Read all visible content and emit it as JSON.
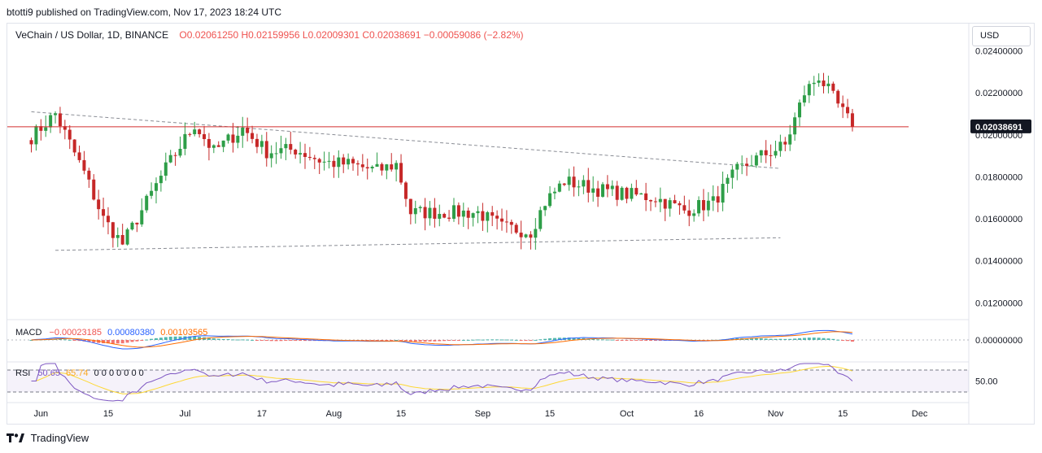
{
  "publisher": "btotti9 published on TradingView.com, Nov 17, 2023 18:24 UTC",
  "legend": {
    "symbol": "VeChain / US Dollar, 1D, BINANCE",
    "open": "O0.02061250",
    "high": "H0.02159956",
    "low": "L0.02009301",
    "close": "C0.02038691",
    "change": "−0.00059086 (−2.82%)"
  },
  "currency": "USD",
  "last_price_label": "0.02038691",
  "macd": {
    "label": "MACD",
    "hist": "−0.00023185",
    "macd": "0.00080380",
    "signal": "0.00103565",
    "axis_label": "0.00000000"
  },
  "rsi": {
    "label": "RSI",
    "value": "50.65",
    "ma": "65.74",
    "extra": "0 0 0 0 0 0 0",
    "axis_label": "50.00"
  },
  "footer": {
    "brand": "TradingView"
  },
  "colors": {
    "up": "#26a69a",
    "up_candle": "#2e9e48",
    "down": "#c62828",
    "price_line": "#d32f2f",
    "macd_line": "#2962ff",
    "signal_line": "#ff6d00",
    "rsi_line": "#7e57c2",
    "rsi_ma": "#fdd835"
  },
  "chart_data": {
    "type": "candlestick",
    "title": "VeChain / US Dollar, 1D, BINANCE",
    "y_ticks": [
      "0.02400000",
      "0.02200000",
      "0.02000000",
      "0.01800000",
      "0.01600000",
      "0.01400000",
      "0.01200000"
    ],
    "ylim": [
      0.0112,
      0.0253
    ],
    "x_ticks": [
      "Jun",
      "15",
      "Jul",
      "17",
      "Aug",
      "15",
      "Sep",
      "15",
      "Oct",
      "16",
      "Nov",
      "15",
      "Dec"
    ],
    "horizontal_line": 0.02038691,
    "trend_lines": [
      {
        "style": "dashed",
        "from": [
          "2023-05-30",
          0.0211
        ],
        "to": [
          "2023-11-02",
          0.0184
        ]
      },
      {
        "style": "dashed",
        "from": [
          "2023-06-04",
          0.0145
        ],
        "to": [
          "2023-11-02",
          0.0151
        ]
      }
    ],
    "anchors": [
      [
        "2023-05-30",
        0.0199
      ],
      [
        "2023-06-04",
        0.021
      ],
      [
        "2023-06-10",
        0.0182
      ],
      [
        "2023-06-14",
        0.016
      ],
      [
        "2023-06-18",
        0.0148
      ],
      [
        "2023-06-22",
        0.0164
      ],
      [
        "2023-06-27",
        0.0184
      ],
      [
        "2023-07-03",
        0.0205
      ],
      [
        "2023-07-07",
        0.0192
      ],
      [
        "2023-07-13",
        0.0203
      ],
      [
        "2023-07-18",
        0.0192
      ],
      [
        "2023-07-24",
        0.0193
      ],
      [
        "2023-07-30",
        0.0187
      ],
      [
        "2023-08-04",
        0.0186
      ],
      [
        "2023-08-10",
        0.0183
      ],
      [
        "2023-08-14",
        0.0186
      ],
      [
        "2023-08-17",
        0.0163
      ],
      [
        "2023-08-23",
        0.0163
      ],
      [
        "2023-08-31",
        0.0163
      ],
      [
        "2023-09-05",
        0.0156
      ],
      [
        "2023-09-11",
        0.0154
      ],
      [
        "2023-09-14",
        0.0168
      ],
      [
        "2023-09-18",
        0.0178
      ],
      [
        "2023-09-25",
        0.0174
      ],
      [
        "2023-09-30",
        0.0172
      ],
      [
        "2023-10-07",
        0.017
      ],
      [
        "2023-10-13",
        0.0164
      ],
      [
        "2023-10-19",
        0.0168
      ],
      [
        "2023-10-24",
        0.0183
      ],
      [
        "2023-10-29",
        0.019
      ],
      [
        "2023-11-03",
        0.0195
      ],
      [
        "2023-11-07",
        0.022
      ],
      [
        "2023-11-10",
        0.0228
      ],
      [
        "2023-11-14",
        0.0214
      ],
      [
        "2023-11-17",
        0.0204
      ]
    ]
  }
}
